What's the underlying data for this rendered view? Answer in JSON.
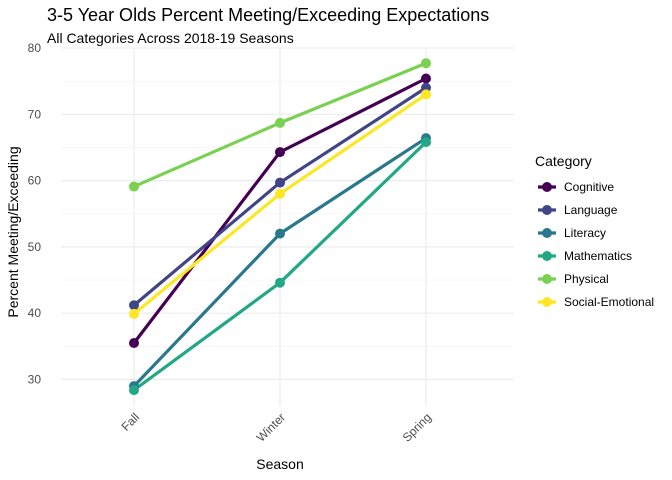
{
  "chart_data": {
    "type": "line",
    "title": "3-5 Year Olds Percent Meeting/Exceeding Expectations",
    "subtitle": "All Categories Across 2018-19 Seasons",
    "xlabel": "Season",
    "ylabel": "Percent Meeting/Exceeding",
    "categories": [
      "Fall",
      "Winter",
      "Spring"
    ],
    "ylim": [
      26,
      80
    ],
    "yticks": [
      30,
      40,
      50,
      60,
      70,
      80
    ],
    "grid": true,
    "legend_title": "Category",
    "legend_position": "right",
    "series": [
      {
        "name": "Cognitive",
        "color": "#440154",
        "values": [
          35.5,
          64.3,
          75.4
        ]
      },
      {
        "name": "Language",
        "color": "#414487",
        "values": [
          41.2,
          59.7,
          74.0
        ]
      },
      {
        "name": "Literacy",
        "color": "#2A788E",
        "values": [
          29.0,
          52.0,
          66.4
        ]
      },
      {
        "name": "Mathematics",
        "color": "#22A884",
        "values": [
          28.4,
          44.6,
          65.8
        ]
      },
      {
        "name": "Physical",
        "color": "#7AD151",
        "values": [
          59.1,
          68.7,
          77.7
        ]
      },
      {
        "name": "Social-Emotional",
        "color": "#FDE725",
        "values": [
          39.9,
          58.0,
          73.0
        ]
      }
    ]
  }
}
